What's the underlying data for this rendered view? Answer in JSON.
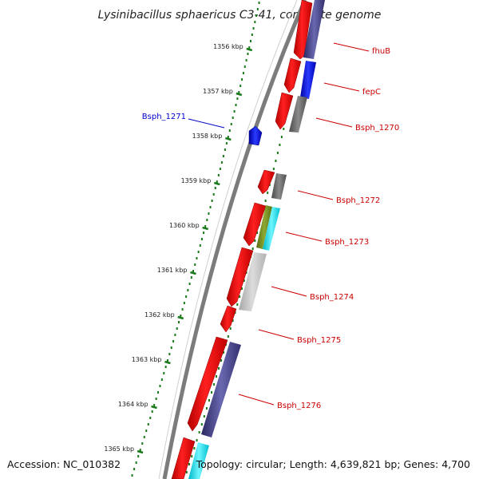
{
  "title": "Lysinibacillus sphaericus C3-41, complete genome",
  "accession": "Accession: NC_010382",
  "topology": "Topology: circular; Length: 4,639,821 bp; Genes: 4,700",
  "colors": {
    "backbone": "#8c8c8c",
    "ruler": "#1a7a1a",
    "forward_gene": "#ff0000",
    "reverse_label": "#cc0000",
    "highlight_label": "#0000cc"
  },
  "ruler_ticks": [
    {
      "label": "1356 kbp"
    },
    {
      "label": "1357 kbp"
    },
    {
      "label": "1358 kbp"
    },
    {
      "label": "1359 kbp"
    },
    {
      "label": "1360 kbp"
    },
    {
      "label": "1361 kbp"
    },
    {
      "label": "1362 kbp"
    },
    {
      "label": "1363 kbp"
    },
    {
      "label": "1364 kbp"
    },
    {
      "label": "1365 kbp"
    }
  ],
  "gene_labels": [
    {
      "name": "fhuB",
      "color": "#cc0000"
    },
    {
      "name": "fepC",
      "color": "#cc0000"
    },
    {
      "name": "Bsph_1270",
      "color": "#cc0000"
    },
    {
      "name": "Bsph_1271",
      "color": "#0000cc"
    },
    {
      "name": "Bsph_1272",
      "color": "#cc0000"
    },
    {
      "name": "Bsph_1273",
      "color": "#cc0000"
    },
    {
      "name": "Bsph_1274",
      "color": "#cc0000"
    },
    {
      "name": "Bsph_1275",
      "color": "#cc0000"
    },
    {
      "name": "Bsph_1276",
      "color": "#cc0000"
    }
  ]
}
